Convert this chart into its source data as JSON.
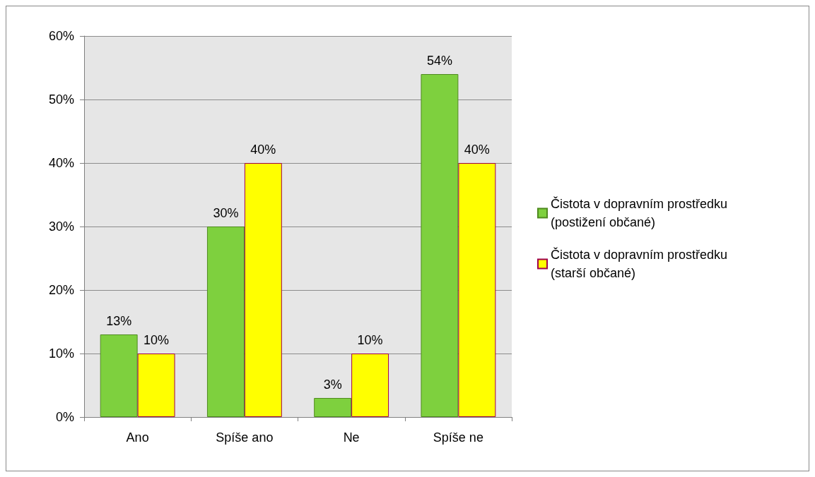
{
  "chart_data": {
    "type": "bar",
    "categories": [
      "Ano",
      "Spíše ano",
      "Ne",
      "Spíše ne"
    ],
    "series": [
      {
        "name": "Čistota v dopravním prostředku (postižení občané)",
        "color": "#7ed03e",
        "values": [
          13,
          30,
          3,
          54
        ],
        "value_labels": [
          "13%",
          "30%",
          "3%",
          "54%"
        ]
      },
      {
        "name": "Čistota v dopravním prostředku (starší občané)",
        "color": "#ffff00",
        "values": [
          10,
          40,
          10,
          40
        ],
        "value_labels": [
          "10%",
          "40%",
          "10%",
          "40%"
        ]
      }
    ],
    "ylim": [
      0,
      60
    ],
    "yticks": [
      {
        "value": 0,
        "label": "0%"
      },
      {
        "value": 10,
        "label": "10%"
      },
      {
        "value": 20,
        "label": "20%"
      },
      {
        "value": 30,
        "label": "30%"
      },
      {
        "value": 40,
        "label": "40%"
      },
      {
        "value": 50,
        "label": "50%"
      },
      {
        "value": 60,
        "label": "60%"
      }
    ],
    "grid": "y",
    "legend": "right"
  }
}
